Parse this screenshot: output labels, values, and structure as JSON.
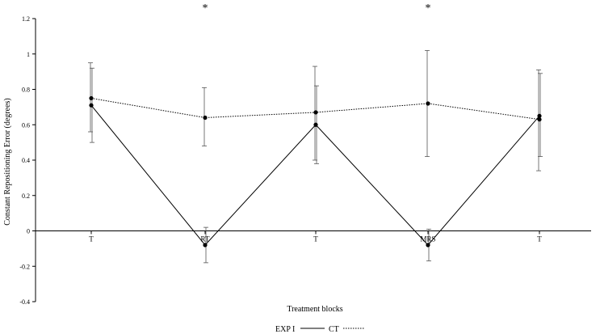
{
  "chart_data": {
    "type": "line",
    "title": "",
    "xlabel": "Treatment blocks",
    "ylabel": "Constant Repositioning Error (degrees)",
    "ylim": [
      -0.4,
      1.2
    ],
    "y_ticks": [
      "1.2",
      "1",
      "0.8",
      "0.6",
      "0.4",
      "0.2",
      "0",
      "-0.2",
      "-0.4"
    ],
    "y_tick_values": [
      1.2,
      1.0,
      0.8,
      0.6,
      0.4,
      0.2,
      0,
      -0.2,
      -0.4
    ],
    "categories": [
      "T",
      "RT",
      "T",
      "MRS",
      "T"
    ],
    "significance_markers": [
      {
        "category_index": 1,
        "label": "*"
      },
      {
        "category_index": 3,
        "label": "*"
      }
    ],
    "legend_position": "bottom-center",
    "grid": false,
    "series": [
      {
        "name": "EXP I",
        "line_style": "solid",
        "values": [
          0.71,
          -0.08,
          0.6,
          -0.08,
          0.65
        ],
        "error_high": [
          0.92,
          0.02,
          0.82,
          0.01,
          0.89
        ],
        "error_low": [
          0.5,
          -0.18,
          0.38,
          -0.17,
          0.42
        ]
      },
      {
        "name": "CT",
        "line_style": "dotted",
        "values": [
          0.75,
          0.64,
          0.67,
          0.72,
          0.63
        ],
        "error_high": [
          0.95,
          0.81,
          0.93,
          1.02,
          0.91
        ],
        "error_low": [
          0.56,
          0.48,
          0.4,
          0.42,
          0.34
        ]
      }
    ]
  }
}
